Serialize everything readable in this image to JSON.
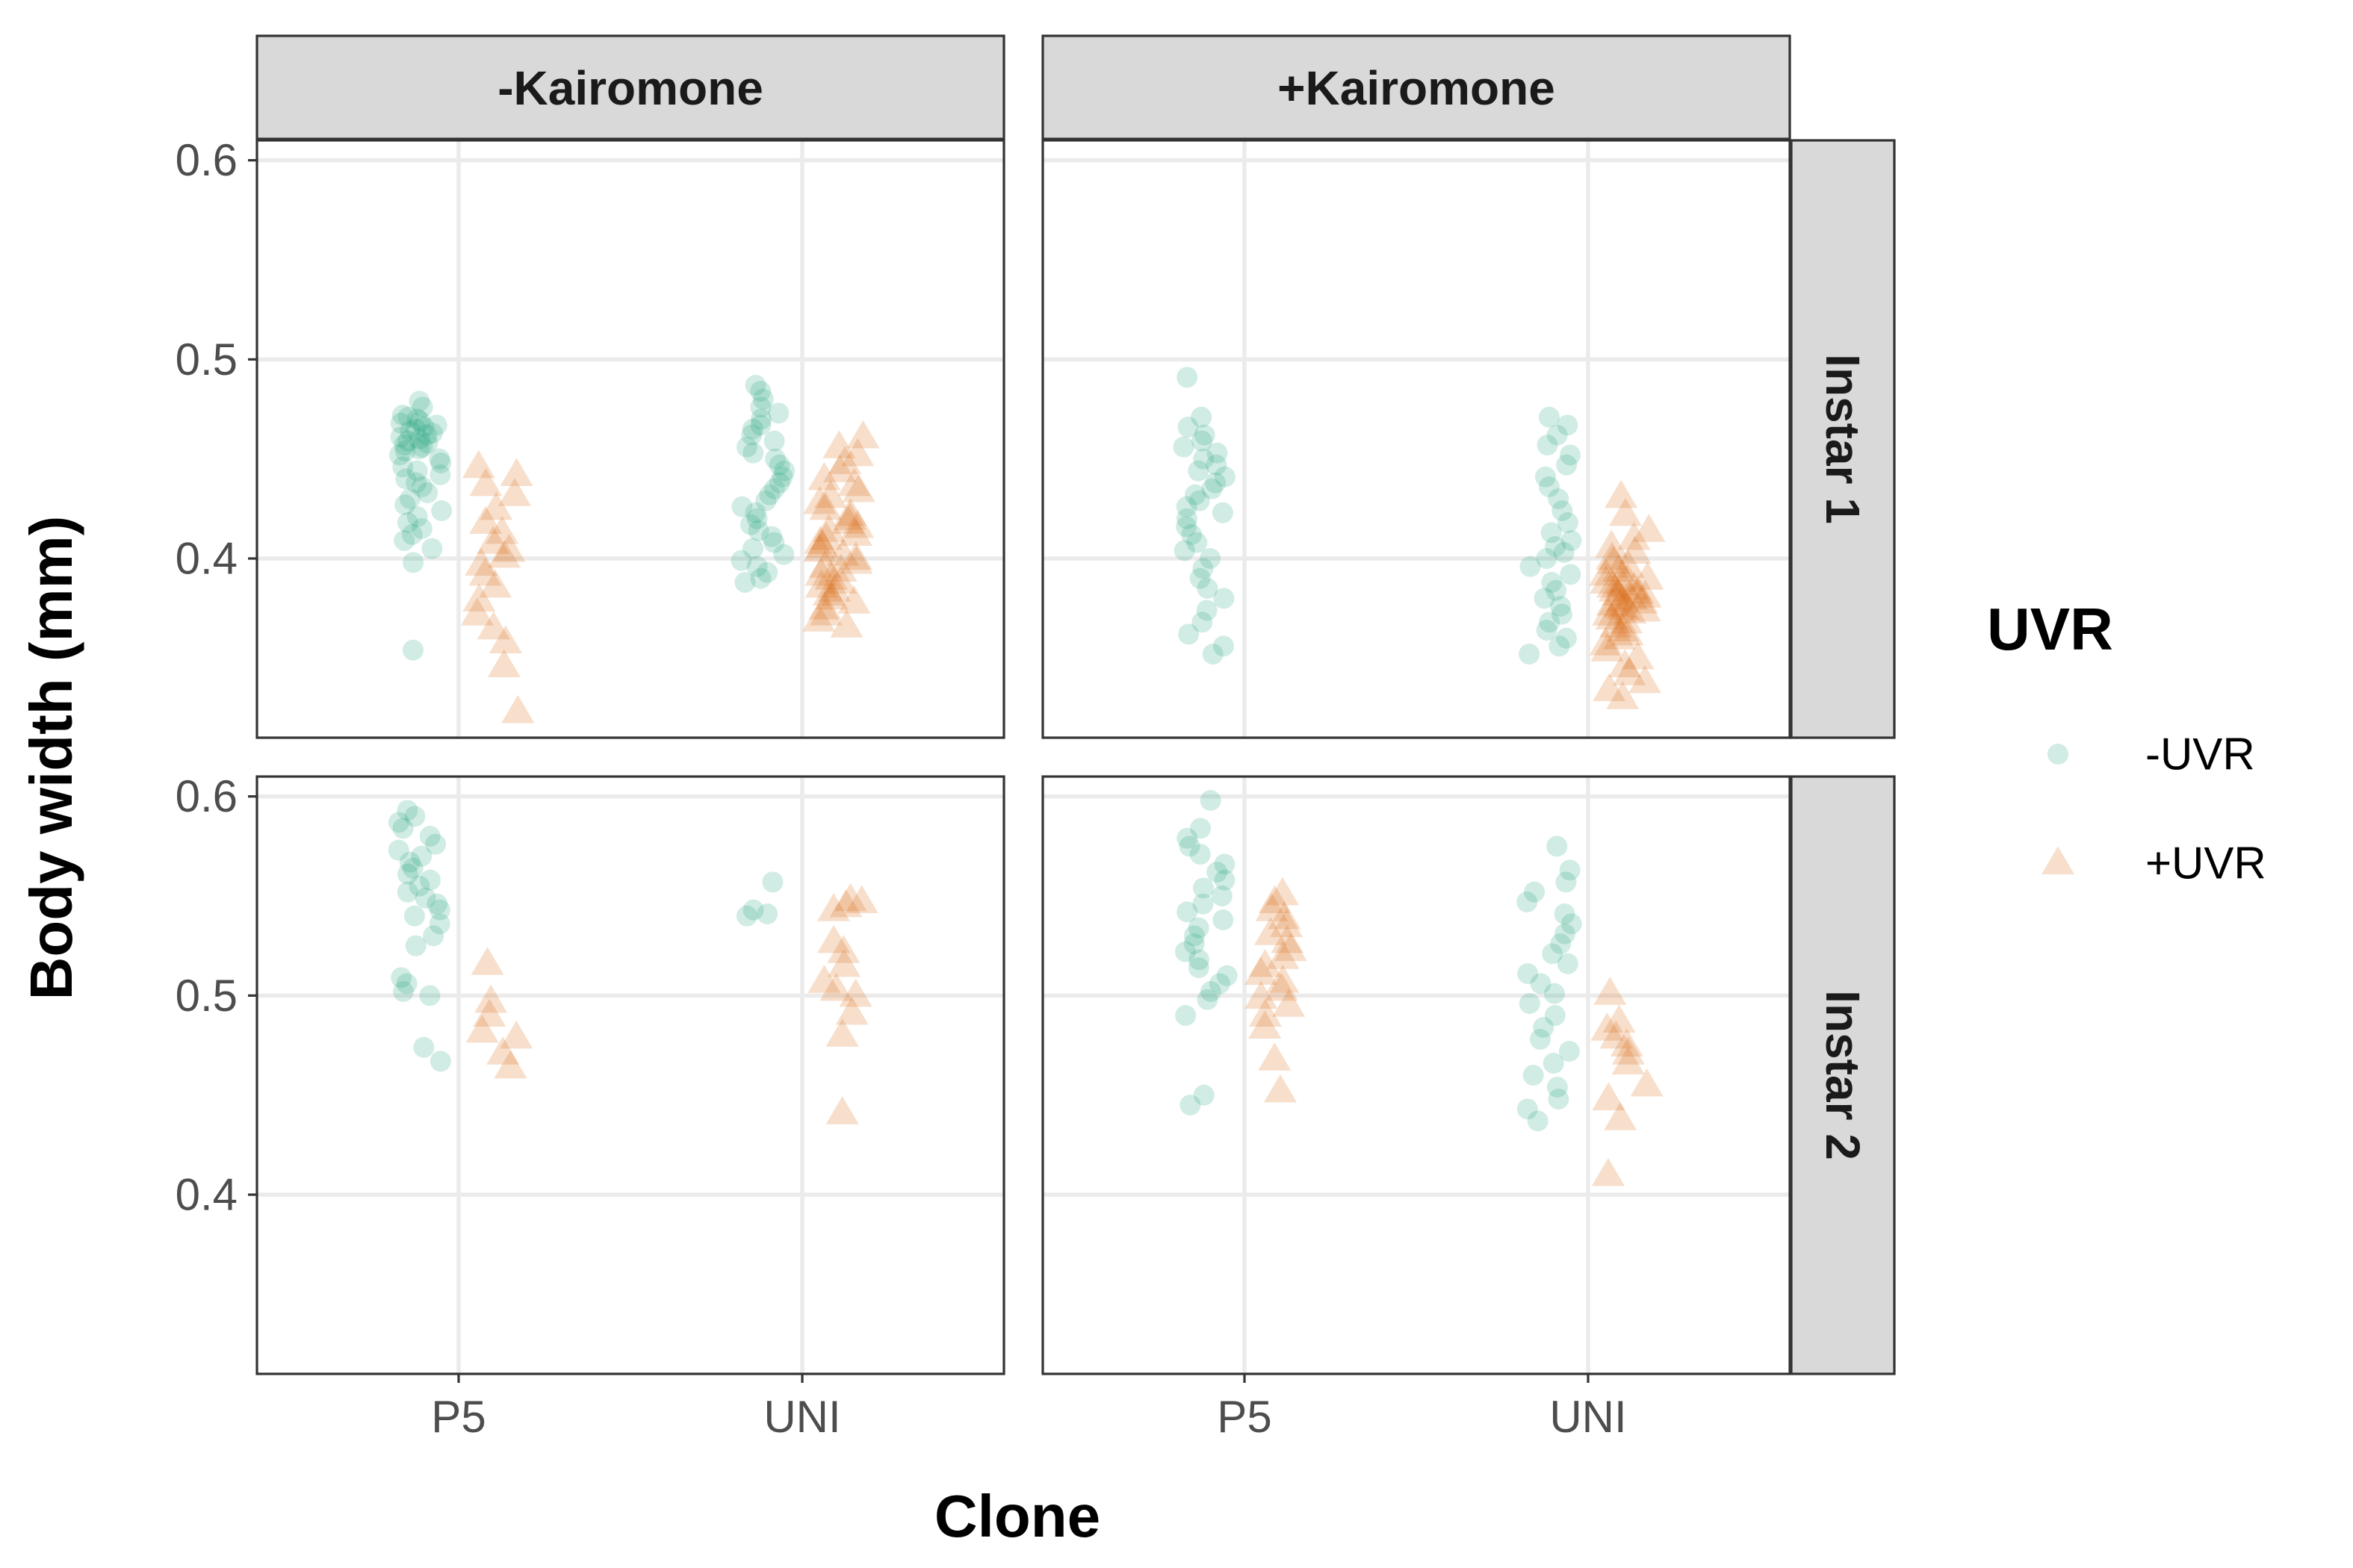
{
  "chart_data": {
    "type": "scatter",
    "xlabel": "Clone",
    "ylabel": "Body width (mm)",
    "categories": [
      "P5",
      "UNI"
    ],
    "ylim": [
      0.31,
      0.61
    ],
    "y_ticks": [
      "0.4",
      "0.5",
      "0.6"
    ],
    "y_tick_values": [
      0.4,
      0.5,
      0.6
    ],
    "grid": true,
    "facet_columns": [
      "-Kairomone",
      "+Kairomone"
    ],
    "facet_rows": [
      "Instar 1",
      "Instar 2"
    ],
    "legend": {
      "title": "UVR",
      "placement": "right",
      "entries": [
        {
          "label": "-UVR",
          "color": "#1b9e77",
          "shape": "circle"
        },
        {
          "label": "+UVR",
          "color": "#d95f02",
          "shape": "triangle"
        }
      ]
    },
    "point_alpha": 0.2,
    "panels": [
      {
        "column": "-Kairomone",
        "row": "Instar 1",
        "groups": [
          {
            "clone": "P5",
            "uvr": "-UVR",
            "values": [
              0.479,
              0.476,
              0.472,
              0.471,
              0.47,
              0.469,
              0.468,
              0.467,
              0.466,
              0.465,
              0.464,
              0.463,
              0.462,
              0.461,
              0.46,
              0.459,
              0.458,
              0.457,
              0.456,
              0.455,
              0.454,
              0.452,
              0.45,
              0.448,
              0.446,
              0.444,
              0.442,
              0.44,
              0.438,
              0.436,
              0.433,
              0.43,
              0.427,
              0.424,
              0.421,
              0.418,
              0.415,
              0.412,
              0.409,
              0.405,
              0.398,
              0.354
            ]
          },
          {
            "clone": "P5",
            "uvr": "+UVR",
            "values": [
              0.446,
              0.442,
              0.437,
              0.432,
              0.425,
              0.418,
              0.413,
              0.408,
              0.404,
              0.401,
              0.397,
              0.392,
              0.386,
              0.379,
              0.372,
              0.365,
              0.358,
              0.346,
              0.323
            ]
          },
          {
            "clone": "UNI",
            "uvr": "-UVR",
            "values": [
              0.487,
              0.484,
              0.48,
              0.476,
              0.473,
              0.47,
              0.467,
              0.465,
              0.462,
              0.459,
              0.456,
              0.453,
              0.45,
              0.447,
              0.444,
              0.441,
              0.438,
              0.435,
              0.432,
              0.429,
              0.426,
              0.423,
              0.42,
              0.417,
              0.414,
              0.411,
              0.408,
              0.405,
              0.402,
              0.399,
              0.396,
              0.393,
              0.39,
              0.388
            ]
          },
          {
            "clone": "UNI",
            "uvr": "+UVR",
            "values": [
              0.461,
              0.456,
              0.452,
              0.448,
              0.444,
              0.44,
              0.437,
              0.434,
              0.431,
              0.428,
              0.425,
              0.422,
              0.42,
              0.418,
              0.416,
              0.414,
              0.412,
              0.41,
              0.408,
              0.406,
              0.404,
              0.402,
              0.4,
              0.398,
              0.396,
              0.394,
              0.392,
              0.39,
              0.388,
              0.386,
              0.384,
              0.382,
              0.38,
              0.378,
              0.375,
              0.372,
              0.369,
              0.366
            ]
          }
        ]
      },
      {
        "column": "+Kairomone",
        "row": "Instar 1",
        "groups": [
          {
            "clone": "P5",
            "uvr": "-UVR",
            "values": [
              0.491,
              0.471,
              0.466,
              0.462,
              0.459,
              0.456,
              0.453,
              0.45,
              0.447,
              0.444,
              0.441,
              0.438,
              0.435,
              0.432,
              0.429,
              0.426,
              0.423,
              0.42,
              0.416,
              0.412,
              0.408,
              0.404,
              0.4,
              0.395,
              0.39,
              0.385,
              0.38,
              0.374,
              0.368,
              0.362,
              0.356,
              0.352
            ]
          },
          {
            "clone": "UNI",
            "uvr": "-UVR",
            "values": [
              0.471,
              0.467,
              0.462,
              0.457,
              0.452,
              0.447,
              0.441,
              0.436,
              0.43,
              0.424,
              0.418,
              0.413,
              0.409,
              0.406,
              0.403,
              0.4,
              0.396,
              0.392,
              0.388,
              0.384,
              0.38,
              0.376,
              0.372,
              0.368,
              0.364,
              0.36,
              0.356,
              0.352
            ]
          },
          {
            "clone": "UNI",
            "uvr": "+UVR",
            "values": [
              0.431,
              0.422,
              0.414,
              0.41,
              0.406,
              0.403,
              0.4,
              0.398,
              0.396,
              0.394,
              0.392,
              0.39,
              0.389,
              0.388,
              0.387,
              0.386,
              0.385,
              0.384,
              0.383,
              0.382,
              0.381,
              0.38,
              0.379,
              0.378,
              0.377,
              0.376,
              0.375,
              0.374,
              0.373,
              0.372,
              0.37,
              0.368,
              0.366,
              0.364,
              0.362,
              0.36,
              0.357,
              0.354,
              0.35,
              0.346,
              0.342,
              0.338,
              0.334,
              0.33
            ]
          }
        ]
      },
      {
        "column": "-Kairomone",
        "row": "Instar 2",
        "groups": [
          {
            "clone": "P5",
            "uvr": "-UVR",
            "values": [
              0.593,
              0.59,
              0.587,
              0.584,
              0.58,
              0.576,
              0.573,
              0.57,
              0.567,
              0.564,
              0.561,
              0.558,
              0.555,
              0.552,
              0.549,
              0.546,
              0.543,
              0.54,
              0.536,
              0.53,
              0.525,
              0.509,
              0.506,
              0.502,
              0.5,
              0.474,
              0.467
            ]
          },
          {
            "clone": "P5",
            "uvr": "+UVR",
            "values": [
              0.516,
              0.497,
              0.49,
              0.482,
              0.479,
              0.471,
              0.464
            ]
          },
          {
            "clone": "UNI",
            "uvr": "-UVR",
            "values": [
              0.557,
              0.543,
              0.541,
              0.54
            ]
          },
          {
            "clone": "UNI",
            "uvr": "+UVR",
            "values": [
              0.548,
              0.547,
              0.545,
              0.543,
              0.527,
              0.522,
              0.515,
              0.507,
              0.503,
              0.5,
              0.491,
              0.48,
              0.441
            ]
          }
        ]
      },
      {
        "column": "+Kairomone",
        "row": "Instar 2",
        "groups": [
          {
            "clone": "P5",
            "uvr": "-UVR",
            "values": [
              0.598,
              0.584,
              0.579,
              0.575,
              0.571,
              0.566,
              0.562,
              0.558,
              0.554,
              0.55,
              0.546,
              0.542,
              0.538,
              0.534,
              0.53,
              0.526,
              0.522,
              0.518,
              0.514,
              0.51,
              0.506,
              0.502,
              0.498,
              0.49,
              0.45,
              0.445
            ]
          },
          {
            "clone": "P5",
            "uvr": "+UVR",
            "values": [
              0.551,
              0.547,
              0.543,
              0.539,
              0.535,
              0.531,
              0.527,
              0.523,
              0.519,
              0.515,
              0.511,
              0.507,
              0.503,
              0.499,
              0.495,
              0.49,
              0.484,
              0.468,
              0.452
            ]
          },
          {
            "clone": "UNI",
            "uvr": "-UVR",
            "values": [
              0.575,
              0.563,
              0.557,
              0.552,
              0.547,
              0.541,
              0.536,
              0.531,
              0.526,
              0.521,
              0.516,
              0.511,
              0.506,
              0.501,
              0.496,
              0.49,
              0.484,
              0.478,
              0.472,
              0.466,
              0.46,
              0.454,
              0.448,
              0.443,
              0.437
            ]
          },
          {
            "clone": "UNI",
            "uvr": "+UVR",
            "values": [
              0.501,
              0.487,
              0.483,
              0.479,
              0.475,
              0.471,
              0.466,
              0.455,
              0.448,
              0.438,
              0.41
            ]
          }
        ]
      }
    ]
  }
}
